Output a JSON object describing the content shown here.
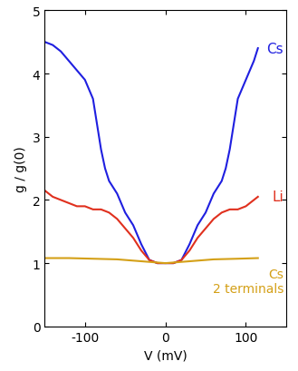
{
  "chart_data": {
    "type": "line",
    "x_label": "V (mV)",
    "y_label": "g / g(0)",
    "xlim": [
      -150,
      150
    ],
    "ylim": [
      0,
      5
    ],
    "xticks": [
      -100,
      0,
      100
    ],
    "yticks": [
      0,
      1,
      2,
      3,
      4,
      5
    ],
    "grid": false,
    "series": [
      {
        "name": "Cs",
        "color": "#1f1fe0",
        "x": [
          -150,
          -140,
          -130,
          -120,
          -110,
          -100,
          -90,
          -85,
          -80,
          -75,
          -70,
          -60,
          -50,
          -40,
          -30,
          -20,
          -10,
          0,
          10,
          20,
          30,
          40,
          50,
          60,
          70,
          75,
          80,
          85,
          90,
          100,
          110,
          115
        ],
        "values": [
          4.5,
          4.45,
          4.35,
          4.2,
          4.05,
          3.9,
          3.6,
          3.2,
          2.8,
          2.5,
          2.3,
          2.1,
          1.8,
          1.6,
          1.3,
          1.05,
          1.0,
          1.0,
          1.0,
          1.05,
          1.3,
          1.6,
          1.8,
          2.1,
          2.3,
          2.5,
          2.8,
          3.2,
          3.6,
          3.9,
          4.2,
          4.4
        ]
      },
      {
        "name": "Li",
        "color": "#e0301e",
        "x": [
          -150,
          -140,
          -130,
          -120,
          -110,
          -100,
          -90,
          -80,
          -70,
          -60,
          -50,
          -40,
          -30,
          -20,
          -10,
          0,
          10,
          20,
          30,
          40,
          50,
          60,
          70,
          80,
          90,
          100,
          110,
          115
        ],
        "values": [
          2.15,
          2.05,
          2.0,
          1.95,
          1.9,
          1.9,
          1.85,
          1.85,
          1.8,
          1.7,
          1.55,
          1.4,
          1.2,
          1.05,
          1.0,
          1.0,
          1.0,
          1.05,
          1.2,
          1.4,
          1.55,
          1.7,
          1.8,
          1.85,
          1.85,
          1.9,
          2.0,
          2.05
        ]
      },
      {
        "name": "Cs\n2 terminals",
        "color": "#d4a017",
        "x": [
          -150,
          -120,
          -90,
          -60,
          -40,
          -20,
          0,
          20,
          40,
          60,
          90,
          115
        ],
        "values": [
          1.08,
          1.08,
          1.07,
          1.06,
          1.04,
          1.02,
          1.0,
          1.02,
          1.04,
          1.06,
          1.07,
          1.08
        ]
      }
    ]
  }
}
